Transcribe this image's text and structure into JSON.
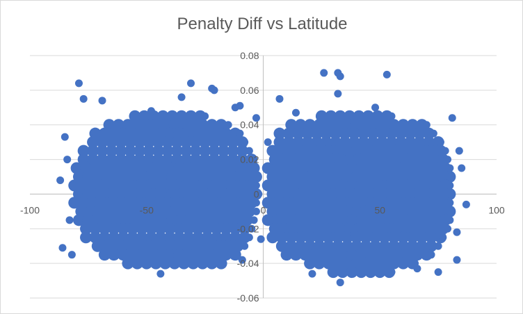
{
  "chart_data": {
    "type": "scatter",
    "title": "Penalty Diff vs Latitude",
    "xlabel": "",
    "ylabel": "",
    "xlim": [
      -100,
      100
    ],
    "ylim": [
      -0.06,
      0.08
    ],
    "x_ticks": [
      "-100",
      "-50",
      "0",
      "50",
      "100"
    ],
    "x_tick_values": [
      -100,
      -50,
      0,
      50,
      100
    ],
    "y_ticks": [
      "0.08",
      "0.06",
      "0.04",
      "0.02",
      "0",
      "-0.02",
      "-0.04",
      "-0.06"
    ],
    "y_tick_values": [
      0.08,
      0.06,
      0.04,
      0.02,
      0,
      -0.02,
      -0.04,
      -0.06
    ],
    "grid": "horizontal",
    "legend": "none",
    "color": "#4472C4",
    "series": [
      {
        "name": "Penalty Diff",
        "dense_rows_step_x": 4,
        "dense_rows": [
          {
            "y": 0.045,
            "x": [
              -55,
              -25
            ]
          },
          {
            "y": 0.04,
            "x": [
              -68,
              -15
            ]
          },
          {
            "y": 0.035,
            "x": [
              -72,
              -10
            ]
          },
          {
            "y": 0.03,
            "x": [
              -75,
              -8
            ]
          },
          {
            "y": 0.025,
            "x": [
              -77,
              -6
            ]
          },
          {
            "y": 0.02,
            "x": [
              -79,
              -5
            ]
          },
          {
            "y": 0.015,
            "x": [
              -80,
              -4
            ]
          },
          {
            "y": 0.01,
            "x": [
              -81,
              -3
            ]
          },
          {
            "y": 0.005,
            "x": [
              -81,
              -3
            ]
          },
          {
            "y": 0,
            "x": [
              -81,
              -2
            ]
          },
          {
            "y": -0.005,
            "x": [
              -81,
              -3
            ]
          },
          {
            "y": -0.01,
            "x": [
              -80,
              -3
            ]
          },
          {
            "y": -0.015,
            "x": [
              -79,
              -4
            ]
          },
          {
            "y": -0.02,
            "x": [
              -78,
              -5
            ]
          },
          {
            "y": -0.025,
            "x": [
              -76,
              -6
            ]
          },
          {
            "y": -0.03,
            "x": [
              -73,
              -8
            ]
          },
          {
            "y": -0.035,
            "x": [
              -68,
              -12
            ]
          },
          {
            "y": -0.04,
            "x": [
              -60,
              -18
            ]
          },
          {
            "y": 0.045,
            "x": [
              25,
              55
            ]
          },
          {
            "y": 0.04,
            "x": [
              10,
              70
            ]
          },
          {
            "y": 0.035,
            "x": [
              7,
              73
            ]
          },
          {
            "y": 0.03,
            "x": [
              5,
              76
            ]
          },
          {
            "y": 0.025,
            "x": [
              4,
              78
            ]
          },
          {
            "y": 0.02,
            "x": [
              3,
              79
            ]
          },
          {
            "y": 0.015,
            "x": [
              2,
              80
            ]
          },
          {
            "y": 0.01,
            "x": [
              2,
              80
            ]
          },
          {
            "y": 0.005,
            "x": [
              2,
              80
            ]
          },
          {
            "y": 0,
            "x": [
              2,
              80
            ]
          },
          {
            "y": -0.005,
            "x": [
              2,
              80
            ]
          },
          {
            "y": -0.01,
            "x": [
              2,
              80
            ]
          },
          {
            "y": -0.015,
            "x": [
              2,
              80
            ]
          },
          {
            "y": -0.02,
            "x": [
              3,
              79
            ]
          },
          {
            "y": -0.025,
            "x": [
              4,
              77
            ]
          },
          {
            "y": -0.03,
            "x": [
              6,
              75
            ]
          },
          {
            "y": -0.035,
            "x": [
              10,
              72
            ]
          },
          {
            "y": -0.04,
            "x": [
              18,
              65
            ]
          },
          {
            "y": -0.045,
            "x": [
              30,
              55
            ]
          }
        ],
        "points": [
          [
            -79,
            0.064
          ],
          [
            -77,
            0.055
          ],
          [
            -69,
            0.054
          ],
          [
            -31,
            0.064
          ],
          [
            -22,
            0.061
          ],
          [
            -21,
            0.06
          ],
          [
            -87,
            0.008
          ],
          [
            -85,
            0.033
          ],
          [
            -86,
            -0.031
          ],
          [
            -82,
            -0.035
          ],
          [
            26,
            0.07
          ],
          [
            32,
            0.07
          ],
          [
            33,
            0.068
          ],
          [
            53,
            0.069
          ],
          [
            7,
            0.055
          ],
          [
            32,
            0.058
          ],
          [
            81,
            0.044
          ],
          [
            85,
            0.015
          ],
          [
            87,
            -0.006
          ],
          [
            83,
            -0.038
          ],
          [
            33,
            -0.051
          ],
          [
            30,
            -0.046
          ],
          [
            75,
            -0.045
          ],
          [
            -44,
            -0.046
          ],
          [
            -9,
            -0.038
          ],
          [
            -1,
            -0.026
          ],
          [
            2,
            0.03
          ],
          [
            -3,
            0.044
          ],
          [
            -10,
            0.051
          ],
          [
            14,
            0.047
          ],
          [
            -48,
            0.048
          ],
          [
            -35,
            0.056
          ],
          [
            48,
            0.05
          ],
          [
            -12,
            0.05
          ],
          [
            21,
            -0.046
          ],
          [
            66,
            -0.043
          ],
          [
            -84,
            0.02
          ],
          [
            -83,
            -0.015
          ],
          [
            84,
            0.025
          ],
          [
            83,
            -0.022
          ]
        ]
      }
    ]
  }
}
